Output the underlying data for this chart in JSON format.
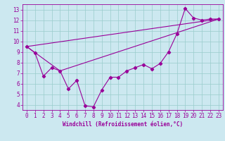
{
  "xlabel": "Windchill (Refroidissement éolien,°C)",
  "bg_color": "#cce8f0",
  "line_color": "#990099",
  "grid_color": "#99cccc",
  "xlim": [
    -0.5,
    23.5
  ],
  "ylim": [
    3.5,
    13.5
  ],
  "xticks": [
    0,
    1,
    2,
    3,
    4,
    5,
    6,
    7,
    8,
    9,
    10,
    11,
    12,
    13,
    14,
    15,
    16,
    17,
    18,
    19,
    20,
    21,
    22,
    23
  ],
  "yticks": [
    4,
    5,
    6,
    7,
    8,
    9,
    10,
    11,
    12,
    13
  ],
  "series1_x": [
    0,
    1,
    2,
    3,
    4,
    5,
    6,
    7,
    8,
    9,
    10,
    11,
    12,
    13,
    14,
    15,
    16,
    17,
    18,
    19,
    20,
    21,
    22,
    23
  ],
  "series1_y": [
    9.5,
    8.9,
    6.7,
    7.5,
    7.2,
    5.5,
    6.3,
    3.9,
    3.8,
    5.4,
    6.6,
    6.6,
    7.2,
    7.5,
    7.8,
    7.4,
    7.9,
    9.0,
    10.7,
    13.1,
    12.2,
    12.0,
    12.1,
    12.1
  ],
  "series2_x": [
    0,
    23
  ],
  "series2_y": [
    9.5,
    12.1
  ],
  "series3_x": [
    0,
    4,
    23
  ],
  "series3_y": [
    9.5,
    7.2,
    12.1
  ],
  "marker": "D",
  "markersize": 2.2,
  "linewidth": 0.8,
  "tick_fontsize": 5.5,
  "xlabel_fontsize": 5.5
}
